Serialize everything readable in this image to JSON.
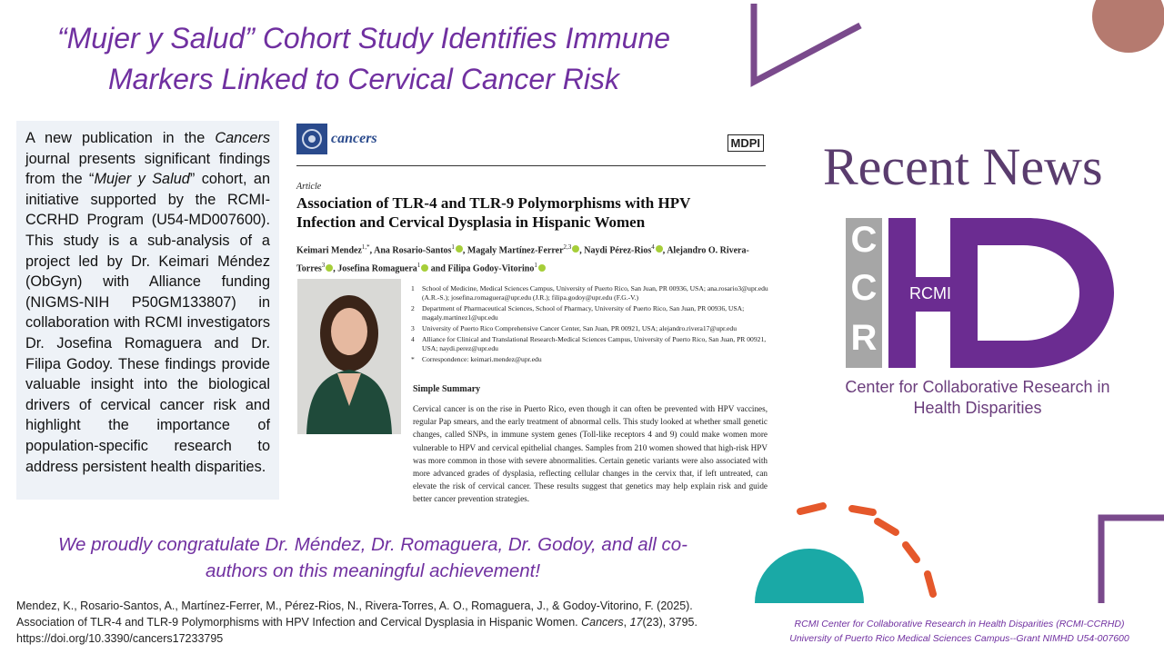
{
  "header": {
    "title": "“Mujer y Salud” Cohort Study Identifies Immune Markers Linked to Cervical Cancer Risk"
  },
  "intro": {
    "segments": [
      "A new publication in the ",
      "Cancers",
      " journal presents significant findings from the “",
      "Mujer y Salud",
      "” cohort, an initiative supported by the RCMI-CCRHD Program (U54-MD007600). This study is a sub-analysis of a project led by Dr. Keimari Méndez (ObGyn) with Alliance funding (NIGMS-NIH P50GM133807) in collaboration with RCMI investigators Dr. Josefina Romaguera and Dr. Filipa Godoy. These findings provide valuable insight into the biological drivers of cervical cancer risk and highlight the importance of population-specific research to address persistent health disparities."
    ]
  },
  "article": {
    "journal": "cancers",
    "publisher": "MDPI",
    "type": "Article",
    "title": "Association of TLR-4 and TLR-9 Polymorphisms with HPV Infection and Cervical Dysplasia in Hispanic Women",
    "authors": [
      {
        "name": "Keimari Mendez",
        "sup": "1,*",
        "sep": ", "
      },
      {
        "name": "Ana Rosario-Santos",
        "sup": "1",
        "sep": ", "
      },
      {
        "name": "Magaly Martínez-Ferrer",
        "sup": "2,3",
        "sep": ", "
      },
      {
        "name": "Naydi Pérez-Rios",
        "sup": "4",
        "sep": ", "
      },
      {
        "name": "Alejandro O. Rivera-Torres",
        "sup": "3",
        "sep": ", "
      },
      {
        "name": "Josefina Romaguera",
        "sup": "1",
        "sep": " and "
      },
      {
        "name": "Filipa Godoy-Vitorino",
        "sup": "1",
        "sep": ""
      }
    ],
    "affiliations": [
      {
        "num": "1",
        "text": "School of Medicine, Medical Sciences Campus, University of Puerto Rico, San Juan, PR 00936, USA; ana.rosario3@upr.edu (A.R.-S.); josefina.romaguera@upr.edu (J.R.); filipa.godoy@upr.edu (F.G.-V.)"
      },
      {
        "num": "2",
        "text": "Department of Pharmaceutical Sciences, School of Pharmacy, University of Puerto Rico, San Juan, PR 00936, USA; magaly.martinez1@upr.edu"
      },
      {
        "num": "3",
        "text": "University of Puerto Rico Comprehensive Cancer Center, San Juan, PR 00921, USA; alejandro.rivera17@upr.edu"
      },
      {
        "num": "4",
        "text": "Alliance for Clinical and Translational Research-Medical Sciences Campus, University of Puerto Rico, San Juan, PR 00921, USA; naydi.perez@upr.edu"
      },
      {
        "num": "*",
        "text": "Correspondence: keimari.mendez@upr.edu"
      }
    ],
    "summary_heading": "Simple Summary",
    "summary": "Cervical cancer is on the rise in Puerto Rico, even though it can often be prevented with HPV vaccines, regular Pap smears, and the early treatment of abnormal cells. This study looked at whether small genetic changes, called SNPs, in immune system genes (Toll-like receptors 4 and 9) could make women more vulnerable to HPV and cervical epithelial changes. Samples from 210 women showed that high-risk HPV was more common in those with severe abnormalities. Certain genetic variants were also associated with more advanced grades of dysplasia, reflecting cellular changes in the cervix that, if left untreated, can elevate the risk of cervical cancer. These results suggest that genetics may help explain risk and guide better cancer prevention strategies."
  },
  "sidebar": {
    "heading": "Recent News",
    "logo_letters": [
      "C",
      "C",
      "R"
    ],
    "logo_hd": "HD",
    "logo_rcmi": "RCMI",
    "center_name": "Center for Collaborative Research in Health Disparities"
  },
  "congrats": "We proudly congratulate Dr. Méndez, Dr. Romaguera, Dr. Godoy, and all co-authors on this meaningful achievement!",
  "citation": {
    "segments": [
      "Mendez, K., Rosario-Santos, A., Martínez-Ferrer, M., Pérez-Rios, N., Rivera-Torres, A. O., Romaguera, J., & Godoy-Vitorino, F. (2025). Association of TLR-4 and TLR-9 Polymorphisms  with HPV Infection and Cervical Dysplasia in Hispanic Women. ",
      "Cancers",
      ", ",
      "17",
      "(23), 3795. https://doi.org/10.3390/cancers17233795"
    ]
  },
  "footer": {
    "lines": [
      "RCMI Center for Collaborative  Research in Health Disparities (RCMI-CCRHD)",
      "University of Puerto Rico Medical Sciences Campus--Grant NIMHD U54-007600"
    ]
  }
}
